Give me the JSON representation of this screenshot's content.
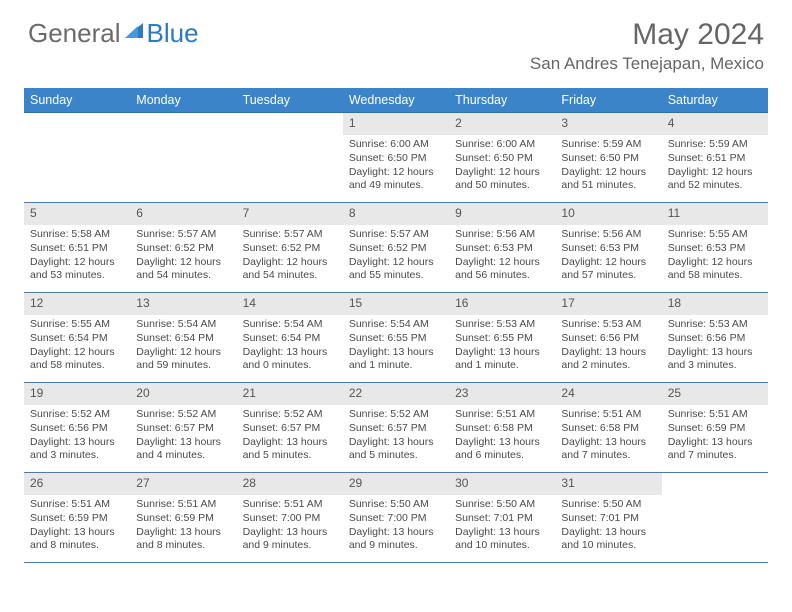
{
  "logo": {
    "text1": "General",
    "text2": "Blue"
  },
  "title": "May 2024",
  "location": "San Andres Tenejapan, Mexico",
  "colors": {
    "header_bg": "#3b84c9",
    "header_text": "#ffffff",
    "daynum_bg": "#e8e8e8",
    "cell_border": "#4a7cab",
    "body_text": "#4a4a4a",
    "title_text": "#666666",
    "logo_gray": "#6b6b6b",
    "logo_blue": "#2f78c4"
  },
  "weekdays": [
    "Sunday",
    "Monday",
    "Tuesday",
    "Wednesday",
    "Thursday",
    "Friday",
    "Saturday"
  ],
  "weeks": [
    [
      {
        "day": "",
        "lines": [
          "",
          "",
          "",
          ""
        ]
      },
      {
        "day": "",
        "lines": [
          "",
          "",
          "",
          ""
        ]
      },
      {
        "day": "",
        "lines": [
          "",
          "",
          "",
          ""
        ]
      },
      {
        "day": "1",
        "lines": [
          "Sunrise: 6:00 AM",
          "Sunset: 6:50 PM",
          "Daylight: 12 hours",
          "and 49 minutes."
        ]
      },
      {
        "day": "2",
        "lines": [
          "Sunrise: 6:00 AM",
          "Sunset: 6:50 PM",
          "Daylight: 12 hours",
          "and 50 minutes."
        ]
      },
      {
        "day": "3",
        "lines": [
          "Sunrise: 5:59 AM",
          "Sunset: 6:50 PM",
          "Daylight: 12 hours",
          "and 51 minutes."
        ]
      },
      {
        "day": "4",
        "lines": [
          "Sunrise: 5:59 AM",
          "Sunset: 6:51 PM",
          "Daylight: 12 hours",
          "and 52 minutes."
        ]
      }
    ],
    [
      {
        "day": "5",
        "lines": [
          "Sunrise: 5:58 AM",
          "Sunset: 6:51 PM",
          "Daylight: 12 hours",
          "and 53 minutes."
        ]
      },
      {
        "day": "6",
        "lines": [
          "Sunrise: 5:57 AM",
          "Sunset: 6:52 PM",
          "Daylight: 12 hours",
          "and 54 minutes."
        ]
      },
      {
        "day": "7",
        "lines": [
          "Sunrise: 5:57 AM",
          "Sunset: 6:52 PM",
          "Daylight: 12 hours",
          "and 54 minutes."
        ]
      },
      {
        "day": "8",
        "lines": [
          "Sunrise: 5:57 AM",
          "Sunset: 6:52 PM",
          "Daylight: 12 hours",
          "and 55 minutes."
        ]
      },
      {
        "day": "9",
        "lines": [
          "Sunrise: 5:56 AM",
          "Sunset: 6:53 PM",
          "Daylight: 12 hours",
          "and 56 minutes."
        ]
      },
      {
        "day": "10",
        "lines": [
          "Sunrise: 5:56 AM",
          "Sunset: 6:53 PM",
          "Daylight: 12 hours",
          "and 57 minutes."
        ]
      },
      {
        "day": "11",
        "lines": [
          "Sunrise: 5:55 AM",
          "Sunset: 6:53 PM",
          "Daylight: 12 hours",
          "and 58 minutes."
        ]
      }
    ],
    [
      {
        "day": "12",
        "lines": [
          "Sunrise: 5:55 AM",
          "Sunset: 6:54 PM",
          "Daylight: 12 hours",
          "and 58 minutes."
        ]
      },
      {
        "day": "13",
        "lines": [
          "Sunrise: 5:54 AM",
          "Sunset: 6:54 PM",
          "Daylight: 12 hours",
          "and 59 minutes."
        ]
      },
      {
        "day": "14",
        "lines": [
          "Sunrise: 5:54 AM",
          "Sunset: 6:54 PM",
          "Daylight: 13 hours",
          "and 0 minutes."
        ]
      },
      {
        "day": "15",
        "lines": [
          "Sunrise: 5:54 AM",
          "Sunset: 6:55 PM",
          "Daylight: 13 hours",
          "and 1 minute."
        ]
      },
      {
        "day": "16",
        "lines": [
          "Sunrise: 5:53 AM",
          "Sunset: 6:55 PM",
          "Daylight: 13 hours",
          "and 1 minute."
        ]
      },
      {
        "day": "17",
        "lines": [
          "Sunrise: 5:53 AM",
          "Sunset: 6:56 PM",
          "Daylight: 13 hours",
          "and 2 minutes."
        ]
      },
      {
        "day": "18",
        "lines": [
          "Sunrise: 5:53 AM",
          "Sunset: 6:56 PM",
          "Daylight: 13 hours",
          "and 3 minutes."
        ]
      }
    ],
    [
      {
        "day": "19",
        "lines": [
          "Sunrise: 5:52 AM",
          "Sunset: 6:56 PM",
          "Daylight: 13 hours",
          "and 3 minutes."
        ]
      },
      {
        "day": "20",
        "lines": [
          "Sunrise: 5:52 AM",
          "Sunset: 6:57 PM",
          "Daylight: 13 hours",
          "and 4 minutes."
        ]
      },
      {
        "day": "21",
        "lines": [
          "Sunrise: 5:52 AM",
          "Sunset: 6:57 PM",
          "Daylight: 13 hours",
          "and 5 minutes."
        ]
      },
      {
        "day": "22",
        "lines": [
          "Sunrise: 5:52 AM",
          "Sunset: 6:57 PM",
          "Daylight: 13 hours",
          "and 5 minutes."
        ]
      },
      {
        "day": "23",
        "lines": [
          "Sunrise: 5:51 AM",
          "Sunset: 6:58 PM",
          "Daylight: 13 hours",
          "and 6 minutes."
        ]
      },
      {
        "day": "24",
        "lines": [
          "Sunrise: 5:51 AM",
          "Sunset: 6:58 PM",
          "Daylight: 13 hours",
          "and 7 minutes."
        ]
      },
      {
        "day": "25",
        "lines": [
          "Sunrise: 5:51 AM",
          "Sunset: 6:59 PM",
          "Daylight: 13 hours",
          "and 7 minutes."
        ]
      }
    ],
    [
      {
        "day": "26",
        "lines": [
          "Sunrise: 5:51 AM",
          "Sunset: 6:59 PM",
          "Daylight: 13 hours",
          "and 8 minutes."
        ]
      },
      {
        "day": "27",
        "lines": [
          "Sunrise: 5:51 AM",
          "Sunset: 6:59 PM",
          "Daylight: 13 hours",
          "and 8 minutes."
        ]
      },
      {
        "day": "28",
        "lines": [
          "Sunrise: 5:51 AM",
          "Sunset: 7:00 PM",
          "Daylight: 13 hours",
          "and 9 minutes."
        ]
      },
      {
        "day": "29",
        "lines": [
          "Sunrise: 5:50 AM",
          "Sunset: 7:00 PM",
          "Daylight: 13 hours",
          "and 9 minutes."
        ]
      },
      {
        "day": "30",
        "lines": [
          "Sunrise: 5:50 AM",
          "Sunset: 7:01 PM",
          "Daylight: 13 hours",
          "and 10 minutes."
        ]
      },
      {
        "day": "31",
        "lines": [
          "Sunrise: 5:50 AM",
          "Sunset: 7:01 PM",
          "Daylight: 13 hours",
          "and 10 minutes."
        ]
      },
      {
        "day": "",
        "lines": [
          "",
          "",
          "",
          ""
        ]
      }
    ]
  ]
}
